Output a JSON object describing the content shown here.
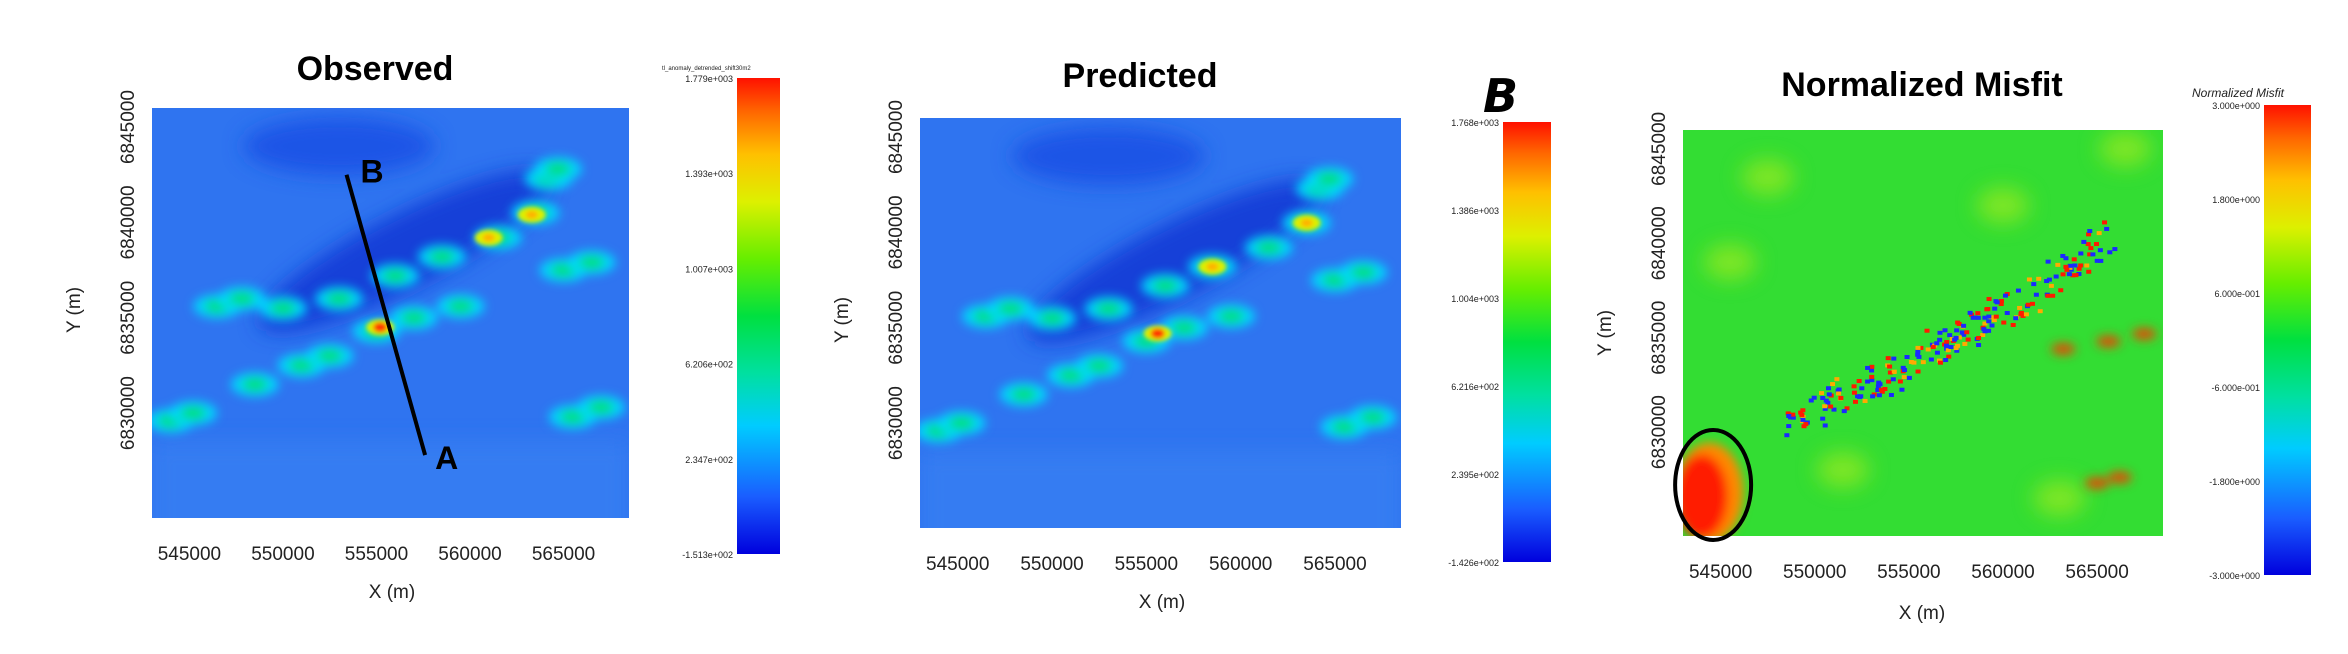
{
  "chart_data": [
    {
      "type": "heatmap",
      "title": "Observed",
      "xlabel": "X (m)",
      "ylabel": "Y (m)",
      "xlim": [
        543000,
        568500
      ],
      "ylim": [
        6824500,
        6846000
      ],
      "xticks": [
        "545000",
        "550000",
        "555000",
        "560000",
        "565000"
      ],
      "xtick_values": [
        545000,
        550000,
        555000,
        560000,
        565000
      ],
      "yticks": [
        "6830000",
        "6835000",
        "6840000",
        "6845000"
      ],
      "ytick_values": [
        6830000,
        6835000,
        6840000,
        6845000
      ],
      "colorbar_title": "tl_anomaly_detrended_shift30m2",
      "colorbar_ticks": [
        "1.779e+003",
        "1.393e+003",
        "1.007e+003",
        "6.206e+002",
        "2.347e+002",
        "-1.513e+002"
      ],
      "colorbar_range": [
        -151.3,
        1779
      ],
      "profile": {
        "start_label": "A",
        "end_label": "B",
        "start": [
          557600,
          6827800
        ],
        "end": [
          553400,
          6842500
        ]
      }
    },
    {
      "type": "heatmap",
      "title": "Predicted",
      "xlabel": "X (m)",
      "ylabel": "Y (m)",
      "xlim": [
        543000,
        568500
      ],
      "ylim": [
        6824500,
        6846000
      ],
      "xticks": [
        "545000",
        "550000",
        "555000",
        "560000",
        "565000"
      ],
      "xtick_values": [
        545000,
        550000,
        555000,
        560000,
        565000
      ],
      "yticks": [
        "6830000",
        "6835000",
        "6840000",
        "6845000"
      ],
      "ytick_values": [
        6830000,
        6835000,
        6840000,
        6845000
      ],
      "colorbar_ticks": [
        "1.768e+003",
        "1.386e+003",
        "1.004e+003",
        "6.216e+002",
        "2.395e+002",
        "-1.426e+002"
      ],
      "colorbar_range": [
        -142.6,
        1768
      ],
      "annotation": "B"
    },
    {
      "type": "heatmap",
      "title": "Normalized Misfit",
      "xlabel": "X (m)",
      "ylabel": "Y (m)",
      "xlim": [
        543000,
        568500
      ],
      "ylim": [
        6824500,
        6846000
      ],
      "xticks": [
        "545000",
        "550000",
        "555000",
        "560000",
        "565000"
      ],
      "xtick_values": [
        545000,
        550000,
        555000,
        560000,
        565000
      ],
      "yticks": [
        "6830000",
        "6835000",
        "6840000",
        "6845000"
      ],
      "ytick_values": [
        6830000,
        6835000,
        6840000,
        6845000
      ],
      "colorbar_title": "Normalized Misfit",
      "colorbar_ticks": [
        "3.000e+000",
        "1.800e+000",
        "6.000e-001",
        "-6.000e-001",
        "-1.800e+000",
        "-3.000e+000"
      ],
      "colorbar_range": [
        -3,
        3
      ],
      "highlight": "ellipse around south-west corner"
    }
  ],
  "colormap": [
    "#0000cc",
    "#1a4dff",
    "#3a8cff",
    "#00e5ff",
    "#00e060",
    "#22dd11",
    "#b4f000",
    "#ffee00",
    "#ff8c00",
    "#ff1a00"
  ]
}
